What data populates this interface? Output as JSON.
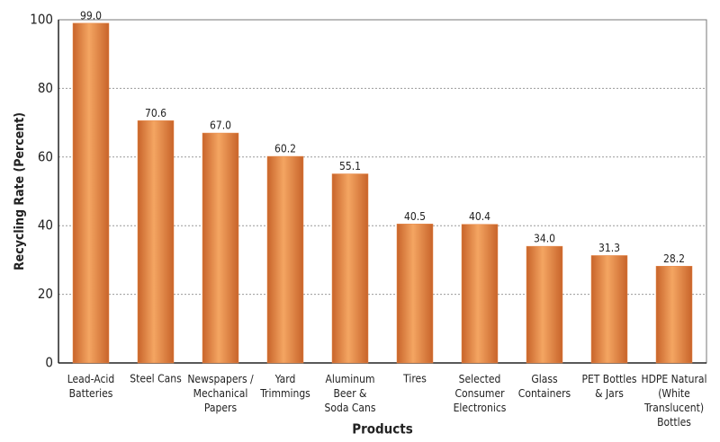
{
  "chart_data": {
    "type": "bar",
    "x_label": "Products",
    "y_label": "Recycling Rate (Percent)",
    "categories": [
      "Lead-Acid\nBatteries",
      "Steel Cans",
      "Newspapers /\nMechanical\nPapers",
      "Yard\nTrimmings",
      "Aluminum\nBeer &\nSoda Cans",
      "Tires",
      "Selected\nConsumer\nElectronics",
      "Glass\nContainers",
      "PET Bottles\n& Jars",
      "HDPE Natural\n(White\nTranslucent)\nBottles"
    ],
    "values": [
      99.0,
      70.6,
      67.0,
      60.2,
      55.1,
      40.5,
      40.4,
      34.0,
      31.3,
      28.2
    ],
    "value_labels": [
      "99.0",
      "70.6",
      "67.0",
      "60.2",
      "55.1",
      "40.5",
      "40.4",
      "34.0",
      "31.3",
      "28.2"
    ],
    "color": "#e8894a",
    "ylim": [
      0,
      100
    ],
    "yticks": [
      0,
      20,
      40,
      60,
      80,
      100
    ],
    "grid": true
  }
}
